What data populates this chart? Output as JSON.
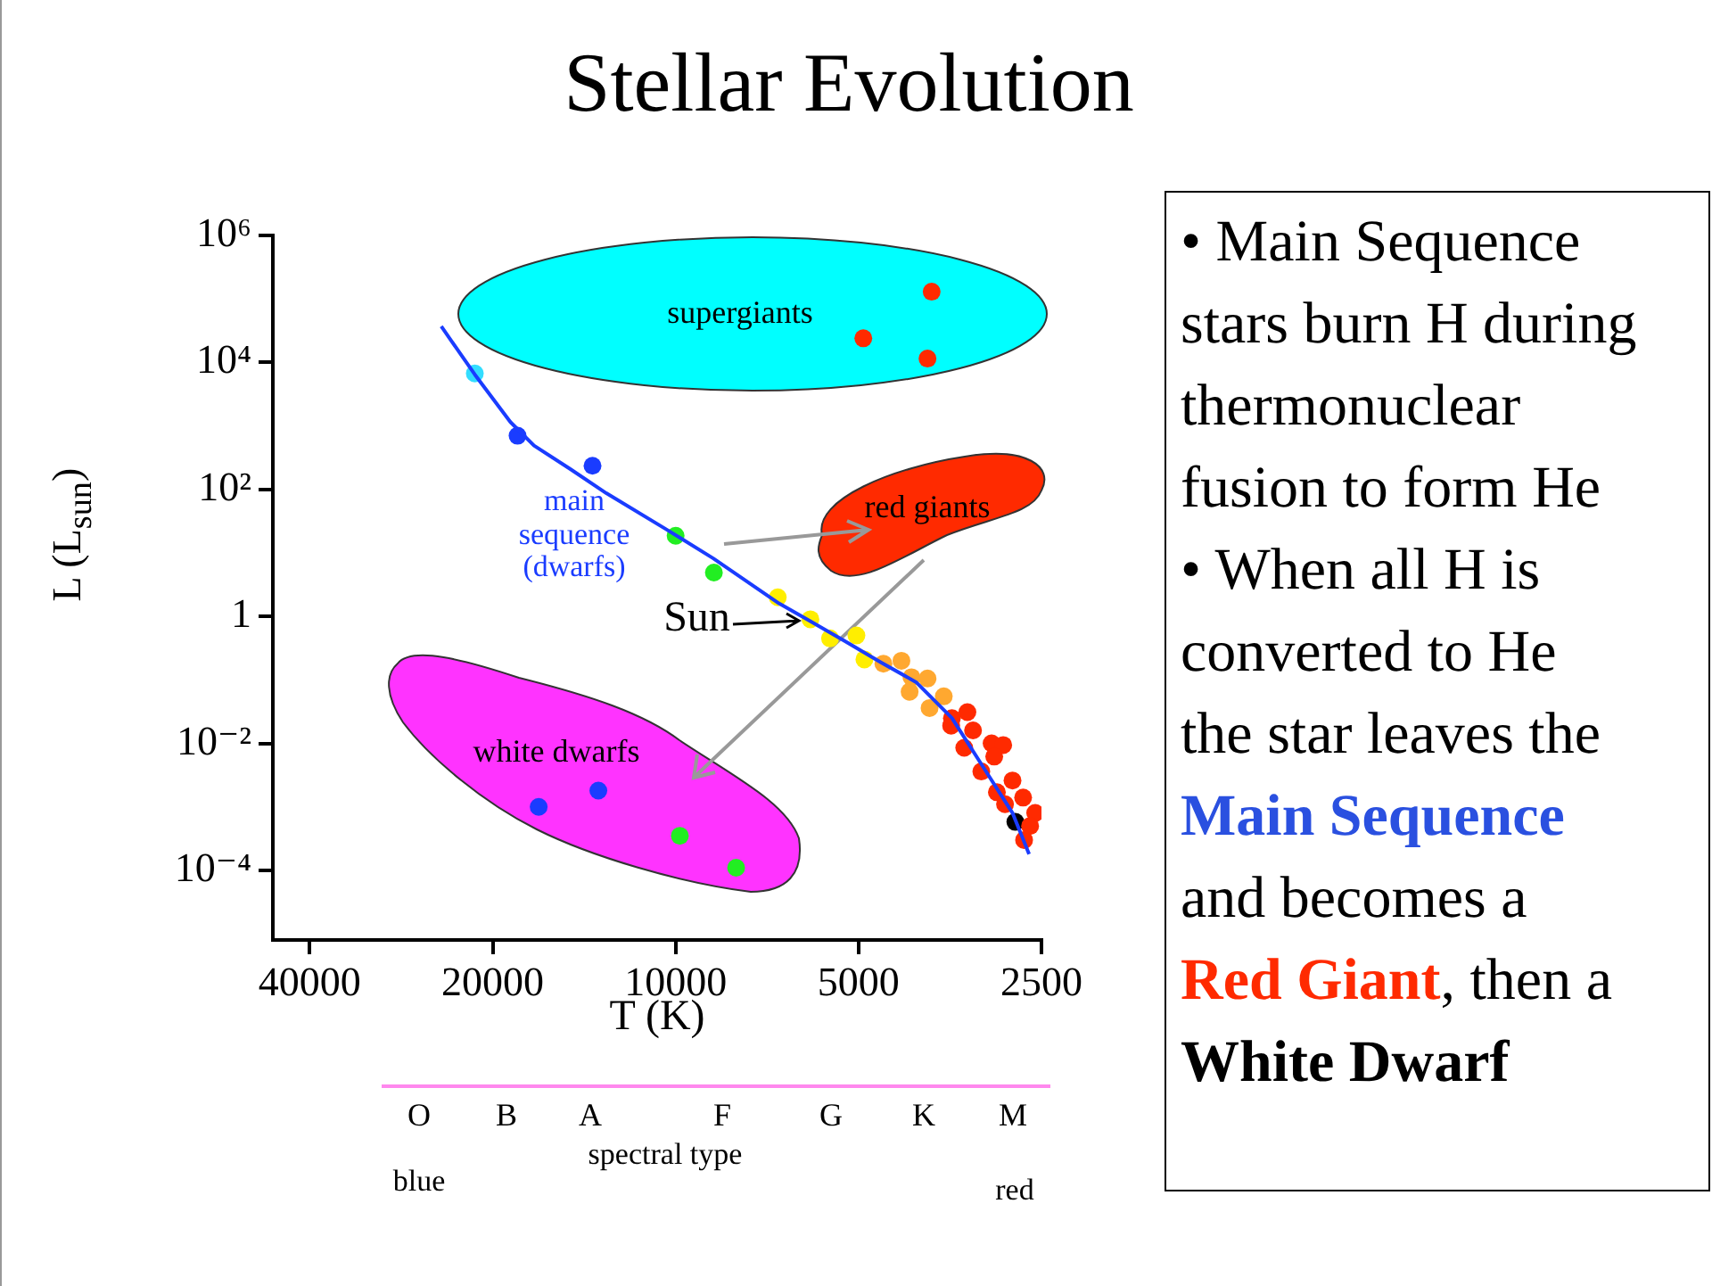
{
  "chart_data": [
    {
      "type": "scatter",
      "title": "Stellar Evolution",
      "xlabel": "T (K)",
      "ylabel": "L (L$_{sun}$)",
      "log": "xy",
      "grid": false,
      "legend": false,
      "marker": "circle",
      "xlim": [
        46000,
        2500
      ],
      "xticks": [
        40000,
        20000,
        10000,
        5000,
        2500
      ],
      "ylim": [
        8e-06,
        1000000
      ],
      "yticks": [
        {
          "value": 1000000,
          "label": "10⁶"
        },
        {
          "value": 10000,
          "label": "10⁴"
        },
        {
          "value": 100,
          "label": "10²"
        },
        {
          "value": 1,
          "label": "1"
        },
        {
          "value": 0.01,
          "label": "10⁻²"
        },
        {
          "value": 0.0001,
          "label": "10⁻⁴"
        }
      ],
      "series": [
        {
          "type": "line",
          "marker": "none",
          "color": "#1a3cff",
          "x": [
            24300,
            21400,
            18700,
            17100,
            14900,
            13000,
            10400,
            8670,
            6760,
            6040,
            5270,
            4600,
            4020,
            3510,
            3130,
            2790,
            2620
          ],
          "values": [
            37000,
            6450,
            1150,
            490,
            209,
            87,
            24,
            8.2,
            1.6,
            0.87,
            0.41,
            0.19,
            0.092,
            0.025,
            0.0045,
            0.0008,
            0.00018
          ]
        },
        {
          "color": "#33ddff",
          "x": [
            21400
          ],
          "values": [
            6700
          ]
        },
        {
          "color": "#1a3cff",
          "x": [
            18200,
            13700,
            16800,
            13400
          ],
          "values": [
            700,
            236,
            0.001,
            0.0018
          ]
        },
        {
          "color": "#22ee22",
          "x": [
            10000,
            8650,
            9840,
            7950
          ],
          "values": [
            18.6,
            4.9,
            0.00035,
            0.00011
          ]
        },
        {
          "color": "#ffee00",
          "x": [
            6790,
            6000,
            5570,
            5040,
            4890
          ],
          "values": [
            2.0,
            0.9,
            0.45,
            0.5,
            0.21
          ]
        },
        {
          "color": "#ffa830",
          "x": [
            4550,
            4250,
            4090,
            3850,
            4120,
            3620,
            3820
          ],
          "values": [
            0.18,
            0.2,
            0.11,
            0.105,
            0.065,
            0.055,
            0.036
          ]
        },
        {
          "color": "#ff2a00",
          "x": [
            3790,
            4910,
            3850,
            3510,
            3310,
            3520,
            3240,
            3020,
            2890,
            3350,
            2990,
            3140,
            2790,
            2960,
            2680,
            2870,
            2560,
            2610,
            2670
          ],
          "values": [
            130000,
            24000,
            11500,
            0.025,
            0.031,
            0.019,
            0.016,
            0.01,
            0.0094,
            0.0085,
            0.0062,
            0.0036,
            0.0026,
            0.0017,
            0.0014,
            0.0011,
            0.0008,
            0.0005,
            0.0003
          ]
        },
        {
          "color": "#000000",
          "x": [
            2760
          ],
          "values": [
            0.00058
          ]
        }
      ],
      "annotations": [
        "supergiants",
        "red giants",
        "white dwarfs",
        "main\nsequence\n(dwarfs)",
        {
          "text": "Sun",
          "x": 6000,
          "y": 0.9
        },
        "O",
        "B",
        "A",
        "F",
        "G",
        "K",
        "M",
        "spectral type",
        "blue",
        "red"
      ]
    },
    {
      "type": "other",
      "annotations": [
        "• Main Sequence stars burn H during thermonuclear fusion to form He",
        "• When all H is converted to He the star leaves the",
        "Main Sequence",
        "and becomes a",
        "Red Giant",
        ", then a",
        "White Dwarf"
      ]
    }
  ]
}
